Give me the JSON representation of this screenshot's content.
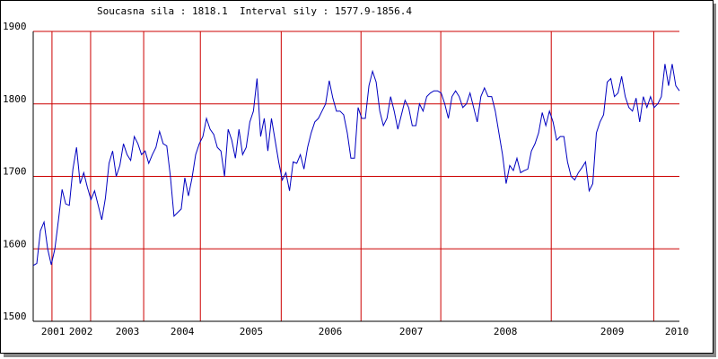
{
  "chart_data": {
    "type": "line",
    "title": "Soucasna sila : 1818.1  Interval sily : 1577.9-1856.4",
    "series": [
      {
        "color": "#0000c0",
        "values": [
          1577,
          1580,
          1625,
          1637,
          1600,
          1578,
          1600,
          1640,
          1682,
          1662,
          1660,
          1710,
          1740,
          1690,
          1705,
          1685,
          1668,
          1680,
          1660,
          1640,
          1670,
          1718,
          1735,
          1700,
          1715,
          1745,
          1730,
          1722,
          1755,
          1745,
          1730,
          1735,
          1718,
          1730,
          1740,
          1762,
          1745,
          1742,
          1700,
          1645,
          1650,
          1655,
          1698,
          1673,
          1698,
          1730,
          1745,
          1755,
          1780,
          1765,
          1758,
          1740,
          1735,
          1700,
          1765,
          1750,
          1725,
          1765,
          1730,
          1740,
          1775,
          1790,
          1835,
          1755,
          1780,
          1735,
          1780,
          1750,
          1720,
          1695,
          1705,
          1680,
          1720,
          1718,
          1730,
          1710,
          1740,
          1760,
          1775,
          1780,
          1790,
          1800,
          1832,
          1808,
          1790,
          1790,
          1785,
          1760,
          1725,
          1725,
          1795,
          1780,
          1780,
          1825,
          1845,
          1830,
          1790,
          1770,
          1780,
          1810,
          1790,
          1765,
          1785,
          1805,
          1795,
          1770,
          1770,
          1800,
          1790,
          1810,
          1815,
          1818,
          1818,
          1815,
          1800,
          1780,
          1810,
          1818,
          1810,
          1795,
          1800,
          1815,
          1795,
          1775,
          1810,
          1822,
          1810,
          1810,
          1790,
          1760,
          1730,
          1690,
          1715,
          1708,
          1725,
          1705,
          1708,
          1710,
          1735,
          1745,
          1760,
          1788,
          1770,
          1790,
          1775,
          1750,
          1755,
          1755,
          1720,
          1700,
          1695,
          1705,
          1712,
          1720,
          1680,
          1690,
          1760,
          1775,
          1785,
          1830,
          1835,
          1810,
          1815,
          1838,
          1810,
          1795,
          1790,
          1808,
          1775,
          1810,
          1795,
          1810,
          1795,
          1800,
          1810,
          1855,
          1825,
          1855,
          1825,
          1818
        ]
      }
    ],
    "xlim": [
      0,
      179
    ],
    "xticks": [
      {
        "value": 5.5,
        "label": "2001"
      },
      {
        "value": 13.2,
        "label": "2002"
      },
      {
        "value": 26.1,
        "label": "2003"
      },
      {
        "value": 41.3,
        "label": "2004"
      },
      {
        "value": 60.4,
        "label": "2005"
      },
      {
        "value": 82.3,
        "label": "2006"
      },
      {
        "value": 104.7,
        "label": "2007"
      },
      {
        "value": 130.8,
        "label": "2008"
      },
      {
        "value": 160.4,
        "label": "2009"
      },
      {
        "value": 178.3,
        "label": "2010"
      }
    ],
    "xgrid": [
      5.2,
      15.9,
      30.6,
      46.3,
      68.7,
      90.8,
      112.9,
      143.5,
      171.9
    ],
    "ylim": [
      1500,
      1900
    ],
    "yticks": [
      1500,
      1600,
      1700,
      1800,
      1900
    ],
    "grid": true,
    "grid_color": "#cc0000"
  }
}
